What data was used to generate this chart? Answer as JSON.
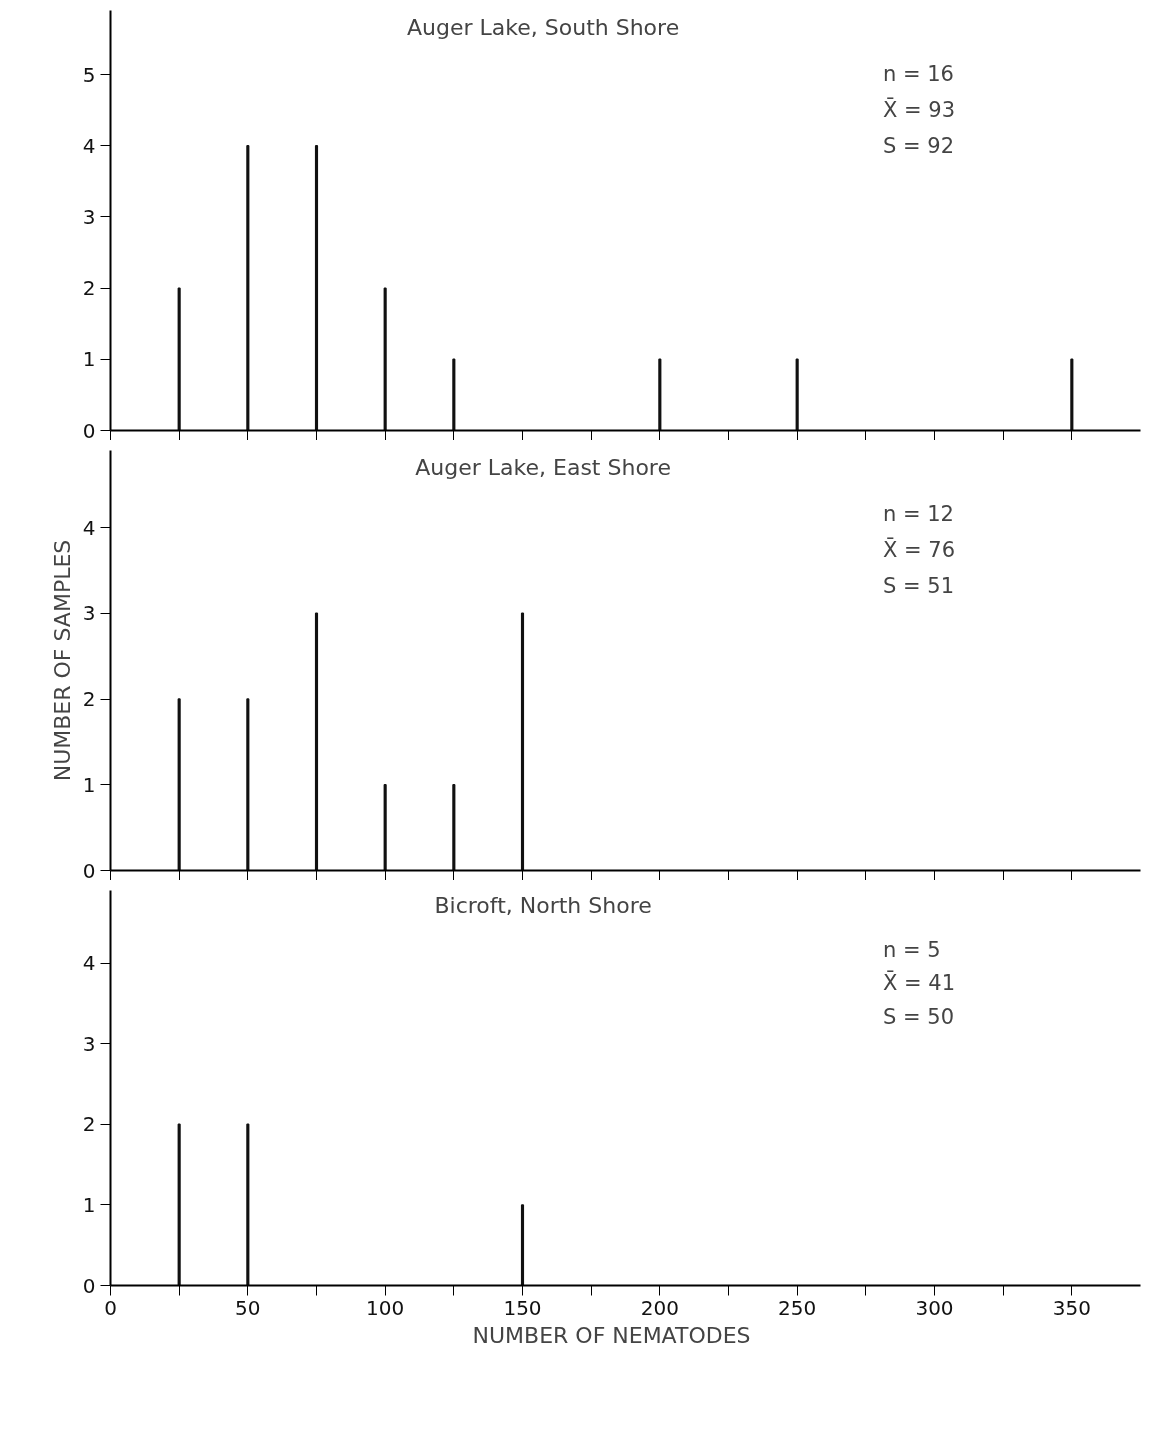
{
  "chart_data": [
    {
      "type": "bar",
      "title": "Auger Lake, South Shore",
      "x": [
        25,
        50,
        75,
        100,
        125,
        200,
        250,
        350
      ],
      "values": [
        2,
        4,
        4,
        2,
        1,
        1,
        1,
        1
      ],
      "color": "#111111",
      "xlim": [
        0,
        375
      ],
      "ylim": [
        0,
        5.9
      ],
      "yticks": [
        0,
        1,
        2,
        3,
        4,
        5
      ],
      "xticks": [
        {
          "value": 0,
          "label": null
        },
        {
          "value": 25,
          "label": null
        },
        {
          "value": 50,
          "label": null
        },
        {
          "value": 75,
          "label": null
        },
        {
          "value": 100,
          "label": null
        },
        {
          "value": 125,
          "label": null
        },
        {
          "value": 150,
          "label": null
        },
        {
          "value": 175,
          "label": null
        },
        {
          "value": 200,
          "label": null
        },
        {
          "value": 225,
          "label": null
        },
        {
          "value": 250,
          "label": null
        },
        {
          "value": 275,
          "label": null
        },
        {
          "value": 300,
          "label": null
        },
        {
          "value": 325,
          "label": null
        },
        {
          "value": 350,
          "label": null
        }
      ],
      "tick_labels": "y",
      "grid": false,
      "annotations": [
        "n = 16",
        "X̄ = 93",
        "S = 92"
      ]
    },
    {
      "type": "bar",
      "title": "Auger Lake, East Shore",
      "ylabel": "NUMBER OF SAMPLES",
      "x": [
        25,
        50,
        75,
        100,
        125,
        150
      ],
      "values": [
        2,
        2,
        3,
        1,
        1,
        3
      ],
      "color": "#111111",
      "xlim": [
        0,
        375
      ],
      "ylim": [
        0,
        4.9
      ],
      "yticks": [
        0,
        1,
        2,
        3,
        4
      ],
      "xticks": [
        {
          "value": 0,
          "label": null
        },
        {
          "value": 25,
          "label": null
        },
        {
          "value": 50,
          "label": null
        },
        {
          "value": 75,
          "label": null
        },
        {
          "value": 100,
          "label": null
        },
        {
          "value": 125,
          "label": null
        },
        {
          "value": 150,
          "label": null
        },
        {
          "value": 175,
          "label": null
        },
        {
          "value": 200,
          "label": null
        },
        {
          "value": 225,
          "label": null
        },
        {
          "value": 250,
          "label": null
        },
        {
          "value": 275,
          "label": null
        },
        {
          "value": 300,
          "label": null
        },
        {
          "value": 325,
          "label": null
        },
        {
          "value": 350,
          "label": null
        }
      ],
      "tick_labels": "y",
      "grid": false,
      "annotations": [
        "n = 12",
        "X̄ = 76",
        "S = 51"
      ]
    },
    {
      "type": "bar",
      "title": "Bicroft, North Shore",
      "xlabel": "NUMBER   OF   NEMATODES",
      "x": [
        25,
        50,
        150
      ],
      "values": [
        2,
        2,
        1
      ],
      "color": "#111111",
      "xlim": [
        0,
        375
      ],
      "ylim": [
        0,
        4.9
      ],
      "yticks": [
        0,
        1,
        2,
        3,
        4
      ],
      "xticks": [
        0,
        {
          "value": 25,
          "label": null
        },
        50,
        {
          "value": 75,
          "label": null
        },
        100,
        {
          "value": 125,
          "label": null
        },
        150,
        {
          "value": 175,
          "label": null
        },
        200,
        {
          "value": 225,
          "label": null
        },
        250,
        {
          "value": 275,
          "label": null
        },
        300,
        {
          "value": 325,
          "label": null
        },
        350
      ],
      "grid": false,
      "annotations": [
        "n = 5",
        "X̄ = 41",
        "S = 50"
      ]
    }
  ]
}
